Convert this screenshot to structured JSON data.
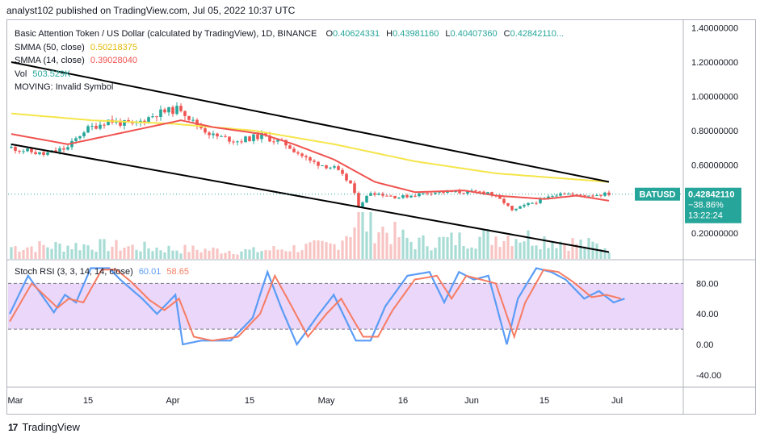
{
  "header": {
    "published": "analyst102 published on TradingView.com, Jul 05, 2022 10:37 UTC"
  },
  "legend": {
    "title": "Basic Attention Token / US Dollar (calculated by TradingView), 1D, BINANCE",
    "ohlc": [
      {
        "k": "O",
        "v": "0.40624331"
      },
      {
        "k": "H",
        "v": "0.43981160"
      },
      {
        "k": "L",
        "v": "0.40407360"
      },
      {
        "k": "C",
        "v": "0.42842110..."
      }
    ],
    "sma50_label": "SMMA (50, close)",
    "sma50_value": "0.50218375",
    "sma14_label": "SMMA (14, close)",
    "sma14_value": "0.39028040",
    "vol_label": "Vol",
    "vol_value": "503.529K",
    "moving_label": "MOVING: Invalid Symbol",
    "stoch_label": "Stoch RSI (3, 3, 14, 14, close)",
    "stoch_k": "60.01",
    "stoch_d": "58.65"
  },
  "price_tag": {
    "symbol": "BATUSD",
    "price": "0.42842110",
    "change": "−38.86%",
    "countdown": "13:22:24"
  },
  "footer": {
    "brand": "TradingView",
    "logo": "17"
  },
  "colors": {
    "up": "#26a69a",
    "down": "#ef5350",
    "sma50": "#f5e54a",
    "sma14": "#ef5350",
    "stoch_k": "#5b9cf6",
    "stoch_d": "#f77c63",
    "stoch_band": "#e1c6f7",
    "channel": "#000000"
  },
  "chart_data": [
    {
      "type": "candlestick",
      "x_ticks": [
        "Mar",
        "15",
        "Apr",
        "15",
        "May",
        "16",
        "Jun",
        "15",
        "Jul"
      ],
      "y_ticks": [
        "1.40000000",
        "1.20000000",
        "1.00000000",
        "0.80000000",
        "0.60000000",
        "0.20000000"
      ],
      "ylim": [
        0.05,
        1.45
      ],
      "current_price": 0.4284211,
      "series_anchors": {
        "close": [
          [
            0,
            0.7
          ],
          [
            8,
            0.66
          ],
          [
            14,
            0.7
          ],
          [
            18,
            0.8
          ],
          [
            24,
            0.86
          ],
          [
            30,
            0.83
          ],
          [
            36,
            0.9
          ],
          [
            42,
            0.93
          ],
          [
            45,
            0.85
          ],
          [
            50,
            0.77
          ],
          [
            56,
            0.74
          ],
          [
            62,
            0.77
          ],
          [
            68,
            0.72
          ],
          [
            74,
            0.62
          ],
          [
            80,
            0.58
          ],
          [
            84,
            0.49
          ],
          [
            86,
            0.36
          ],
          [
            89,
            0.44
          ],
          [
            96,
            0.41
          ],
          [
            104,
            0.44
          ],
          [
            112,
            0.44
          ],
          [
            118,
            0.44
          ],
          [
            122,
            0.38
          ],
          [
            124,
            0.33
          ],
          [
            128,
            0.37
          ],
          [
            132,
            0.4
          ],
          [
            136,
            0.44
          ],
          [
            140,
            0.42
          ],
          [
            148,
            0.43
          ]
        ],
        "smma50": [
          [
            0,
            0.9
          ],
          [
            20,
            0.86
          ],
          [
            40,
            0.84
          ],
          [
            60,
            0.8
          ],
          [
            80,
            0.72
          ],
          [
            100,
            0.62
          ],
          [
            120,
            0.55
          ],
          [
            148,
            0.5
          ]
        ],
        "smma14": [
          [
            0,
            0.78
          ],
          [
            14,
            0.72
          ],
          [
            30,
            0.8
          ],
          [
            42,
            0.86
          ],
          [
            50,
            0.82
          ],
          [
            62,
            0.78
          ],
          [
            70,
            0.72
          ],
          [
            80,
            0.63
          ],
          [
            90,
            0.5
          ],
          [
            100,
            0.44
          ],
          [
            112,
            0.45
          ],
          [
            120,
            0.42
          ],
          [
            132,
            0.4
          ],
          [
            140,
            0.42
          ],
          [
            148,
            0.39
          ]
        ],
        "volume": [
          [
            0,
            0.3
          ],
          [
            20,
            0.35
          ],
          [
            40,
            0.25
          ],
          [
            60,
            0.2
          ],
          [
            80,
            0.35
          ],
          [
            86,
            1.0
          ],
          [
            100,
            0.4
          ],
          [
            124,
            0.6
          ],
          [
            148,
            0.3
          ]
        ]
      },
      "channel": {
        "upper": [
          [
            0,
            1.2
          ],
          [
            148,
            0.5
          ]
        ],
        "lower": [
          [
            0,
            0.72
          ],
          [
            148,
            0.09
          ]
        ]
      }
    },
    {
      "type": "line",
      "y_ticks": [
        "80.00",
        "40.00",
        "0.00",
        "-40.00"
      ],
      "ylim": [
        -55,
        110
      ],
      "band": [
        20,
        80
      ],
      "series_anchors": {
        "k": [
          [
            0,
            40
          ],
          [
            5,
            90
          ],
          [
            12,
            42
          ],
          [
            15,
            65
          ],
          [
            18,
            55
          ],
          [
            22,
            100
          ],
          [
            27,
            100
          ],
          [
            30,
            85
          ],
          [
            36,
            60
          ],
          [
            40,
            40
          ],
          [
            45,
            65
          ],
          [
            47,
            0
          ],
          [
            52,
            5
          ],
          [
            60,
            5
          ],
          [
            66,
            35
          ],
          [
            70,
            95
          ],
          [
            74,
            45
          ],
          [
            78,
            0
          ],
          [
            84,
            40
          ],
          [
            88,
            65
          ],
          [
            94,
            5
          ],
          [
            98,
            5
          ],
          [
            102,
            50
          ],
          [
            108,
            90
          ],
          [
            114,
            95
          ],
          [
            118,
            55
          ],
          [
            122,
            95
          ],
          [
            126,
            85
          ],
          [
            130,
            90
          ],
          [
            135,
            0
          ],
          [
            138,
            60
          ],
          [
            143,
            100
          ],
          [
            147,
            95
          ],
          [
            151,
            85
          ],
          [
            156,
            60
          ],
          [
            160,
            70
          ],
          [
            164,
            55
          ],
          [
            167,
            60
          ]
        ],
        "d": [
          [
            0,
            30
          ],
          [
            6,
            80
          ],
          [
            13,
            48
          ],
          [
            16,
            60
          ],
          [
            20,
            55
          ],
          [
            25,
            98
          ],
          [
            29,
            98
          ],
          [
            33,
            82
          ],
          [
            38,
            58
          ],
          [
            42,
            45
          ],
          [
            46,
            60
          ],
          [
            50,
            10
          ],
          [
            55,
            5
          ],
          [
            62,
            10
          ],
          [
            68,
            40
          ],
          [
            72,
            90
          ],
          [
            76,
            55
          ],
          [
            81,
            10
          ],
          [
            86,
            40
          ],
          [
            90,
            60
          ],
          [
            96,
            10
          ],
          [
            100,
            10
          ],
          [
            104,
            45
          ],
          [
            110,
            85
          ],
          [
            116,
            90
          ],
          [
            120,
            60
          ],
          [
            124,
            90
          ],
          [
            128,
            85
          ],
          [
            132,
            80
          ],
          [
            137,
            10
          ],
          [
            140,
            55
          ],
          [
            145,
            98
          ],
          [
            149,
            95
          ],
          [
            153,
            82
          ],
          [
            158,
            62
          ],
          [
            162,
            65
          ],
          [
            166,
            60
          ]
        ]
      }
    }
  ]
}
